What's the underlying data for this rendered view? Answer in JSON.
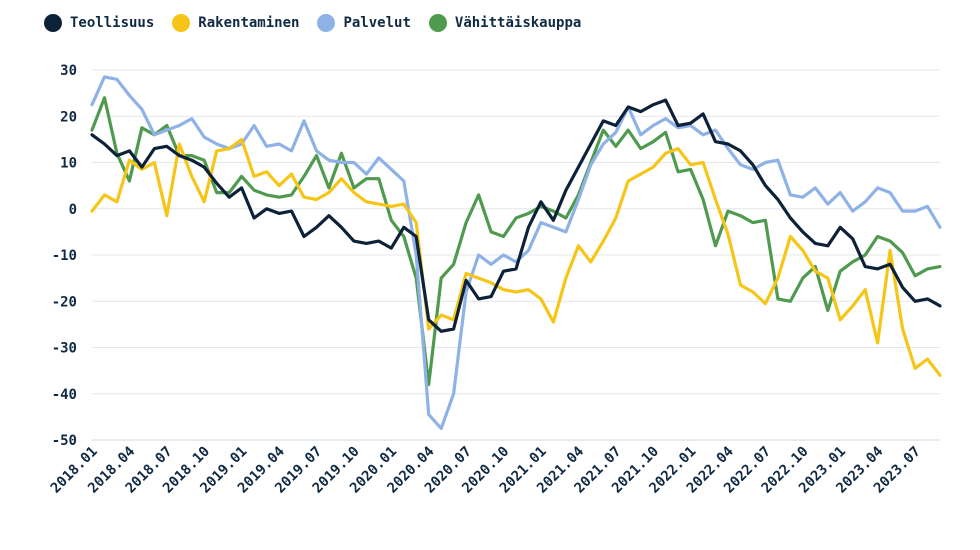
{
  "chart_data": {
    "type": "line",
    "title": "",
    "xlabel": "",
    "ylabel": "",
    "ylim": [
      -50,
      30
    ],
    "yticks": [
      30,
      20,
      10,
      0,
      -10,
      -20,
      -30,
      -40,
      -50
    ],
    "grid": "horizontal",
    "legend_position": "top-left",
    "x_start": "2018.01",
    "x_tick_labels": [
      "2018.01",
      "2018.04",
      "2018.07",
      "2018.10",
      "2019.01",
      "2019.04",
      "2019.07",
      "2019.10",
      "2020.01",
      "2020.04",
      "2020.07",
      "2020.10",
      "2021.01",
      "2021.04",
      "2021.07",
      "2021.10",
      "2022.01",
      "2022.04",
      "2022.07",
      "2022.10",
      "2023.01",
      "2023.04",
      "2023.07"
    ],
    "series": [
      {
        "name": "Teollisuus",
        "color": "#0d2238",
        "values": [
          16,
          14,
          11.5,
          12.5,
          9,
          13,
          13.5,
          11.5,
          10.5,
          9,
          5.5,
          2.5,
          4.5,
          -2,
          0,
          -1,
          -0.5,
          -6,
          -4,
          -1.5,
          -4,
          -7,
          -7.5,
          -7,
          -8.5,
          -4,
          -6,
          -24,
          -26.5,
          -26,
          -15.5,
          -19.5,
          -19,
          -13.5,
          -13,
          -4,
          1.5,
          -2.5,
          4,
          9,
          14,
          19,
          18,
          22,
          21,
          22.5,
          23.5,
          18,
          18.5,
          20.5,
          14.5,
          14,
          12.5,
          9.5,
          5,
          2,
          -2,
          -5,
          -7.5,
          -8,
          -4,
          -6.5,
          -12.5,
          -13,
          -12,
          -17,
          -20,
          -19.5,
          -21
        ]
      },
      {
        "name": "Rakentaminen",
        "color": "#f5c518",
        "values": [
          -0.5,
          3,
          1.5,
          10.5,
          8.5,
          10,
          -1.5,
          14,
          7,
          1.5,
          12.5,
          13,
          15,
          7,
          8,
          5,
          7.5,
          2.5,
          2,
          3.5,
          6.5,
          3.5,
          1.5,
          1,
          0.5,
          1,
          -3,
          -26,
          -23,
          -24,
          -14,
          -15,
          -16,
          -17.5,
          -18,
          -17.5,
          -19.5,
          -24.5,
          -15,
          -8,
          -11.5,
          -7,
          -2,
          6,
          7.5,
          9,
          12,
          13,
          9.5,
          10,
          2,
          -5.5,
          -16.5,
          -18,
          -20.5,
          -15,
          -6,
          -9,
          -13.5,
          -15,
          -24,
          -21,
          -17.5,
          -29,
          -9,
          -26,
          -34.5,
          -32.5,
          -36
        ]
      },
      {
        "name": "Palvelut",
        "color": "#8fb2e6",
        "values": [
          22.5,
          28.5,
          28,
          24.5,
          21.5,
          16,
          17,
          18,
          19.5,
          15.5,
          14,
          13,
          14,
          18,
          13.5,
          14,
          12.5,
          19,
          12.5,
          10.5,
          10,
          10,
          7.5,
          11,
          8.5,
          6,
          -10,
          -44.5,
          -47.5,
          -40,
          -18,
          -10,
          -12,
          -10,
          -11.5,
          -9,
          -3,
          -4,
          -5,
          2,
          9.5,
          14,
          16.5,
          22,
          16,
          18,
          19.5,
          17.5,
          18,
          16,
          17,
          13,
          9.5,
          8.5,
          10,
          10.5,
          3,
          2.5,
          4.5,
          1,
          3.5,
          -0.5,
          1.5,
          4.5,
          3.5,
          -0.5,
          -0.5,
          0.5,
          -4
        ]
      },
      {
        "name": "Vähittäiskauppa",
        "color": "#4f9a4f",
        "values": [
          17,
          24,
          12,
          6,
          17.5,
          16,
          18,
          11.5,
          11.5,
          10.5,
          3.5,
          3.5,
          7,
          4,
          3,
          2.5,
          3,
          7,
          11.5,
          4.5,
          12,
          4.5,
          6.5,
          6.5,
          -2.5,
          -6,
          -15,
          -38,
          -15,
          -12,
          -3,
          3,
          -5,
          -6,
          -2,
          -1,
          0.5,
          -0.5,
          -2,
          3,
          10,
          17,
          13.5,
          17,
          13,
          14.5,
          16.5,
          8,
          8.5,
          2,
          -8,
          -0.5,
          -1.5,
          -3,
          -2.5,
          -19.5,
          -20,
          -15,
          -12.5,
          -22,
          -13.5,
          -11.5,
          -10,
          -6,
          -7,
          -9.5,
          -14.5,
          -13,
          -12.5
        ]
      }
    ]
  }
}
